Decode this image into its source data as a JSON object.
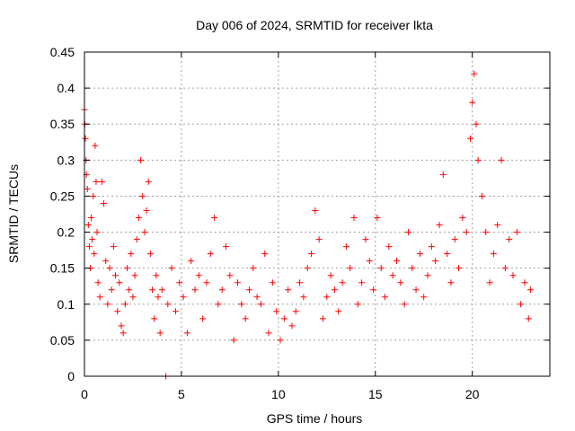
{
  "chart_data": {
    "type": "scatter",
    "title": "Day 006 of 2024, SRMTID for receiver lkta",
    "xlabel": "GPS time / hours",
    "ylabel": "SRMTID / TECUs",
    "xlim": [
      0,
      24
    ],
    "ylim": [
      0,
      0.45
    ],
    "xticks": [
      "0",
      "5",
      "10",
      "15",
      "20"
    ],
    "yticks": [
      "0",
      "0.05",
      "0.1",
      "0.15",
      "0.2",
      "0.25",
      "0.3",
      "0.35",
      "0.4",
      "0.45"
    ],
    "grid": true,
    "legend": "none",
    "marker": "+",
    "color": "#ff0000",
    "series": [
      {
        "points": [
          [
            0.0,
            0.37
          ],
          [
            0.02,
            0.35
          ],
          [
            0.05,
            0.33
          ],
          [
            0.08,
            0.3
          ],
          [
            0.1,
            0.28
          ],
          [
            0.15,
            0.26
          ],
          [
            0.2,
            0.21
          ],
          [
            0.25,
            0.18
          ],
          [
            0.3,
            0.15
          ],
          [
            0.35,
            0.22
          ],
          [
            0.4,
            0.19
          ],
          [
            0.45,
            0.25
          ],
          [
            0.5,
            0.17
          ],
          [
            0.55,
            0.32
          ],
          [
            0.6,
            0.27
          ],
          [
            0.65,
            0.2
          ],
          [
            0.7,
            0.13
          ],
          [
            0.8,
            0.11
          ],
          [
            0.9,
            0.27
          ],
          [
            1.0,
            0.24
          ],
          [
            1.1,
            0.16
          ],
          [
            1.2,
            0.1
          ],
          [
            1.3,
            0.15
          ],
          [
            1.4,
            0.12
          ],
          [
            1.5,
            0.18
          ],
          [
            1.6,
            0.14
          ],
          [
            1.7,
            0.09
          ],
          [
            1.8,
            0.13
          ],
          [
            1.9,
            0.07
          ],
          [
            2.0,
            0.06
          ],
          [
            2.1,
            0.1
          ],
          [
            2.2,
            0.15
          ],
          [
            2.3,
            0.12
          ],
          [
            2.4,
            0.17
          ],
          [
            2.5,
            0.11
          ],
          [
            2.6,
            0.14
          ],
          [
            2.7,
            0.19
          ],
          [
            2.8,
            0.22
          ],
          [
            2.9,
            0.3
          ],
          [
            3.0,
            0.25
          ],
          [
            3.1,
            0.2
          ],
          [
            3.2,
            0.23
          ],
          [
            3.3,
            0.27
          ],
          [
            3.4,
            0.17
          ],
          [
            3.5,
            0.12
          ],
          [
            3.6,
            0.08
          ],
          [
            3.7,
            0.14
          ],
          [
            3.8,
            0.11
          ],
          [
            3.9,
            0.06
          ],
          [
            4.0,
            0.12
          ],
          [
            4.2,
            0.0
          ],
          [
            4.3,
            0.1
          ],
          [
            4.5,
            0.15
          ],
          [
            4.7,
            0.09
          ],
          [
            4.9,
            0.13
          ],
          [
            5.1,
            0.11
          ],
          [
            5.3,
            0.06
          ],
          [
            5.5,
            0.16
          ],
          [
            5.7,
            0.12
          ],
          [
            5.9,
            0.14
          ],
          [
            6.1,
            0.08
          ],
          [
            6.3,
            0.13
          ],
          [
            6.5,
            0.17
          ],
          [
            6.7,
            0.22
          ],
          [
            6.9,
            0.1
          ],
          [
            7.1,
            0.12
          ],
          [
            7.3,
            0.18
          ],
          [
            7.5,
            0.14
          ],
          [
            7.7,
            0.05
          ],
          [
            7.9,
            0.13
          ],
          [
            8.1,
            0.1
          ],
          [
            8.3,
            0.08
          ],
          [
            8.5,
            0.12
          ],
          [
            8.7,
            0.15
          ],
          [
            8.9,
            0.11
          ],
          [
            9.1,
            0.1
          ],
          [
            9.3,
            0.17
          ],
          [
            9.5,
            0.06
          ],
          [
            9.7,
            0.13
          ],
          [
            9.9,
            0.09
          ],
          [
            10.1,
            0.05
          ],
          [
            10.3,
            0.08
          ],
          [
            10.5,
            0.12
          ],
          [
            10.7,
            0.07
          ],
          [
            10.9,
            0.09
          ],
          [
            11.1,
            0.13
          ],
          [
            11.3,
            0.11
          ],
          [
            11.5,
            0.15
          ],
          [
            11.7,
            0.17
          ],
          [
            11.9,
            0.23
          ],
          [
            12.1,
            0.19
          ],
          [
            12.3,
            0.08
          ],
          [
            12.5,
            0.11
          ],
          [
            12.7,
            0.14
          ],
          [
            12.9,
            0.12
          ],
          [
            13.1,
            0.09
          ],
          [
            13.3,
            0.13
          ],
          [
            13.5,
            0.18
          ],
          [
            13.7,
            0.15
          ],
          [
            13.9,
            0.22
          ],
          [
            14.1,
            0.1
          ],
          [
            14.3,
            0.13
          ],
          [
            14.5,
            0.19
          ],
          [
            14.7,
            0.16
          ],
          [
            14.9,
            0.12
          ],
          [
            15.1,
            0.22
          ],
          [
            15.3,
            0.15
          ],
          [
            15.5,
            0.11
          ],
          [
            15.7,
            0.18
          ],
          [
            15.9,
            0.14
          ],
          [
            16.1,
            0.16
          ],
          [
            16.3,
            0.13
          ],
          [
            16.5,
            0.1
          ],
          [
            16.7,
            0.2
          ],
          [
            16.9,
            0.15
          ],
          [
            17.1,
            0.12
          ],
          [
            17.3,
            0.17
          ],
          [
            17.5,
            0.11
          ],
          [
            17.7,
            0.14
          ],
          [
            17.9,
            0.18
          ],
          [
            18.1,
            0.16
          ],
          [
            18.3,
            0.21
          ],
          [
            18.5,
            0.28
          ],
          [
            18.7,
            0.17
          ],
          [
            18.9,
            0.13
          ],
          [
            19.1,
            0.19
          ],
          [
            19.3,
            0.15
          ],
          [
            19.5,
            0.22
          ],
          [
            19.7,
            0.2
          ],
          [
            19.9,
            0.33
          ],
          [
            20.0,
            0.38
          ],
          [
            20.1,
            0.42
          ],
          [
            20.2,
            0.35
          ],
          [
            20.3,
            0.3
          ],
          [
            20.5,
            0.25
          ],
          [
            20.7,
            0.2
          ],
          [
            20.9,
            0.13
          ],
          [
            21.1,
            0.17
          ],
          [
            21.3,
            0.21
          ],
          [
            21.5,
            0.3
          ],
          [
            21.7,
            0.15
          ],
          [
            21.9,
            0.19
          ],
          [
            22.1,
            0.14
          ],
          [
            22.3,
            0.2
          ],
          [
            22.5,
            0.1
          ],
          [
            22.7,
            0.13
          ],
          [
            22.9,
            0.08
          ],
          [
            23.0,
            0.12
          ]
        ]
      }
    ]
  }
}
